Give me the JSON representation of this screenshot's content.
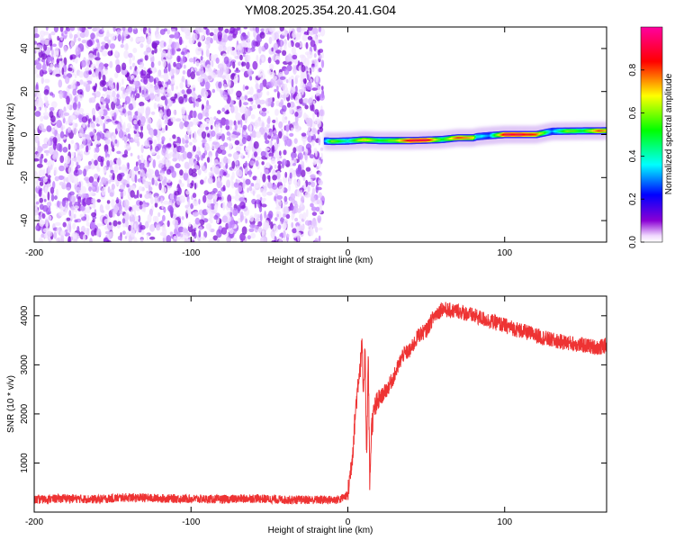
{
  "figure": {
    "title": "YM08.2025.354.20.41.G04"
  },
  "chart_data": [
    {
      "type": "heatmap",
      "title": "",
      "xlabel": "Height of straight line (km)",
      "ylabel": "Frequency (Hz)",
      "xlim": [
        -200,
        165
      ],
      "ylim": [
        -50,
        50
      ],
      "x_ticks": [
        -200,
        -100,
        0,
        100
      ],
      "y_ticks": [
        -40,
        -20,
        0,
        20,
        40
      ],
      "grid": false,
      "colorbar": {
        "label": "Normalized spectral amplitude",
        "range": [
          0,
          1
        ],
        "ticks": [
          "0.0",
          "0.2",
          "0.4",
          "0.6",
          "0.8"
        ],
        "colormap": [
          "#ffffff",
          "#8a00d4",
          "#0000ff",
          "#00ffff",
          "#00ff00",
          "#ffff00",
          "#ff0000",
          "#ff00a0"
        ]
      },
      "regions": [
        {
          "description": "broadband noise",
          "x": [
            -200,
            -16
          ],
          "f": [
            -50,
            50
          ],
          "amplitude_range": [
            0.0,
            0.15
          ]
        },
        {
          "description": "signal trace",
          "x": [
            -16,
            165
          ],
          "f": [
            -3,
            2
          ],
          "amplitude_range": [
            0.2,
            1.0
          ]
        }
      ],
      "ridge": {
        "x": [
          -15,
          -10,
          0,
          10,
          20,
          30,
          40,
          50,
          60,
          70,
          80,
          82,
          90,
          100,
          110,
          120,
          130,
          140,
          150,
          160,
          165
        ],
        "f": [
          -3,
          -3.2,
          -3,
          -2.5,
          -2.8,
          -2.8,
          -2.8,
          -2.6,
          -2.3,
          -1.5,
          -1.5,
          -1,
          -0.5,
          0,
          0,
          0,
          1.5,
          1.6,
          1.7,
          1.7,
          1.8
        ],
        "amplitude": [
          0.3,
          0.6,
          0.4,
          0.7,
          0.5,
          0.6,
          0.9,
          0.9,
          0.5,
          0.8,
          0.7,
          0.4,
          0.3,
          0.9,
          0.9,
          0.8,
          0.3,
          0.6,
          0.5,
          0.8,
          0.7
        ]
      },
      "color_ridge": "#ff0000"
    },
    {
      "type": "line",
      "title": "",
      "xlabel": "Height of straight line (km)",
      "ylabel": "SNR (10 * v/v)",
      "xlim": [
        -200,
        165
      ],
      "ylim": [
        0,
        4400
      ],
      "x_ticks": [
        -200,
        -100,
        0,
        100
      ],
      "y_ticks": [
        1000,
        2000,
        3000,
        4000
      ],
      "grid": false,
      "series": [
        {
          "color": "#ee3333",
          "x": [
            -200,
            -180,
            -160,
            -140,
            -120,
            -100,
            -80,
            -60,
            -40,
            -20,
            -10,
            -5,
            0,
            3,
            5,
            7,
            8,
            9,
            10,
            11,
            12,
            13,
            14,
            15,
            17,
            20,
            25,
            30,
            35,
            40,
            45,
            50,
            55,
            60,
            65,
            70,
            75,
            80,
            90,
            100,
            110,
            120,
            130,
            140,
            150,
            160,
            165
          ],
          "y": [
            250,
            280,
            260,
            300,
            280,
            270,
            260,
            280,
            250,
            250,
            250,
            260,
            350,
            1200,
            2100,
            2800,
            3000,
            3400,
            2200,
            3500,
            1000,
            3200,
            500,
            1700,
            2100,
            2300,
            2500,
            2800,
            3200,
            3300,
            3600,
            3700,
            4000,
            4150,
            4100,
            4100,
            4050,
            4000,
            3900,
            3800,
            3700,
            3600,
            3500,
            3450,
            3400,
            3350,
            3400
          ]
        }
      ]
    }
  ]
}
